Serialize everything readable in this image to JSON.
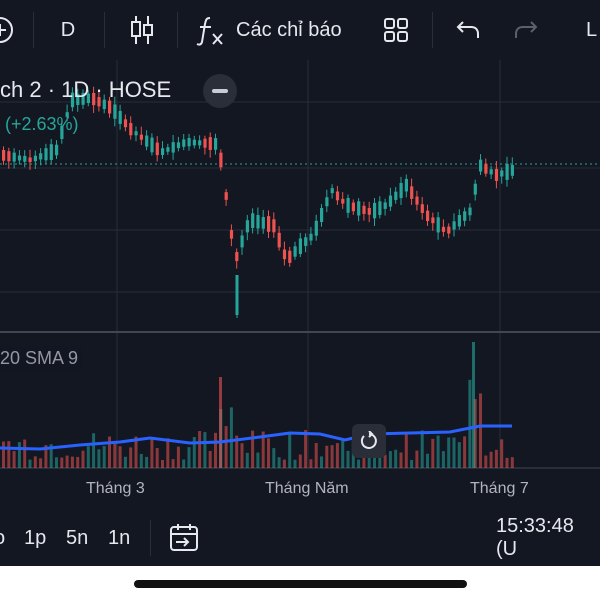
{
  "toolbar": {
    "interval": "D",
    "indicators_label": "Các chỉ báo",
    "right_partial": "L"
  },
  "legend": {
    "symbol_partial": "ch 2 · 1D · HOSE",
    "change_pct": "(+2.63%)",
    "volume_indicator": "20 SMA 9"
  },
  "x_axis": {
    "labels": [
      "Tháng 3",
      "Tháng Năm",
      "Tháng 7"
    ]
  },
  "bottom_bar": {
    "ranges": [
      "o",
      "1p",
      "5n",
      "1n"
    ],
    "clock": "15:33:48 (U"
  },
  "colors": {
    "background": "#131722",
    "up": "#26a69a",
    "down": "#ef5350",
    "sma": "#2962ff"
  },
  "icons": {
    "candle": "candlestick-icon",
    "fx": "indicators-fx-icon",
    "layout": "layout-grid-icon",
    "undo": "undo-icon",
    "redo": "redo-icon",
    "calendar": "calendar-goto-icon",
    "reset": "reset-chart-icon"
  }
}
